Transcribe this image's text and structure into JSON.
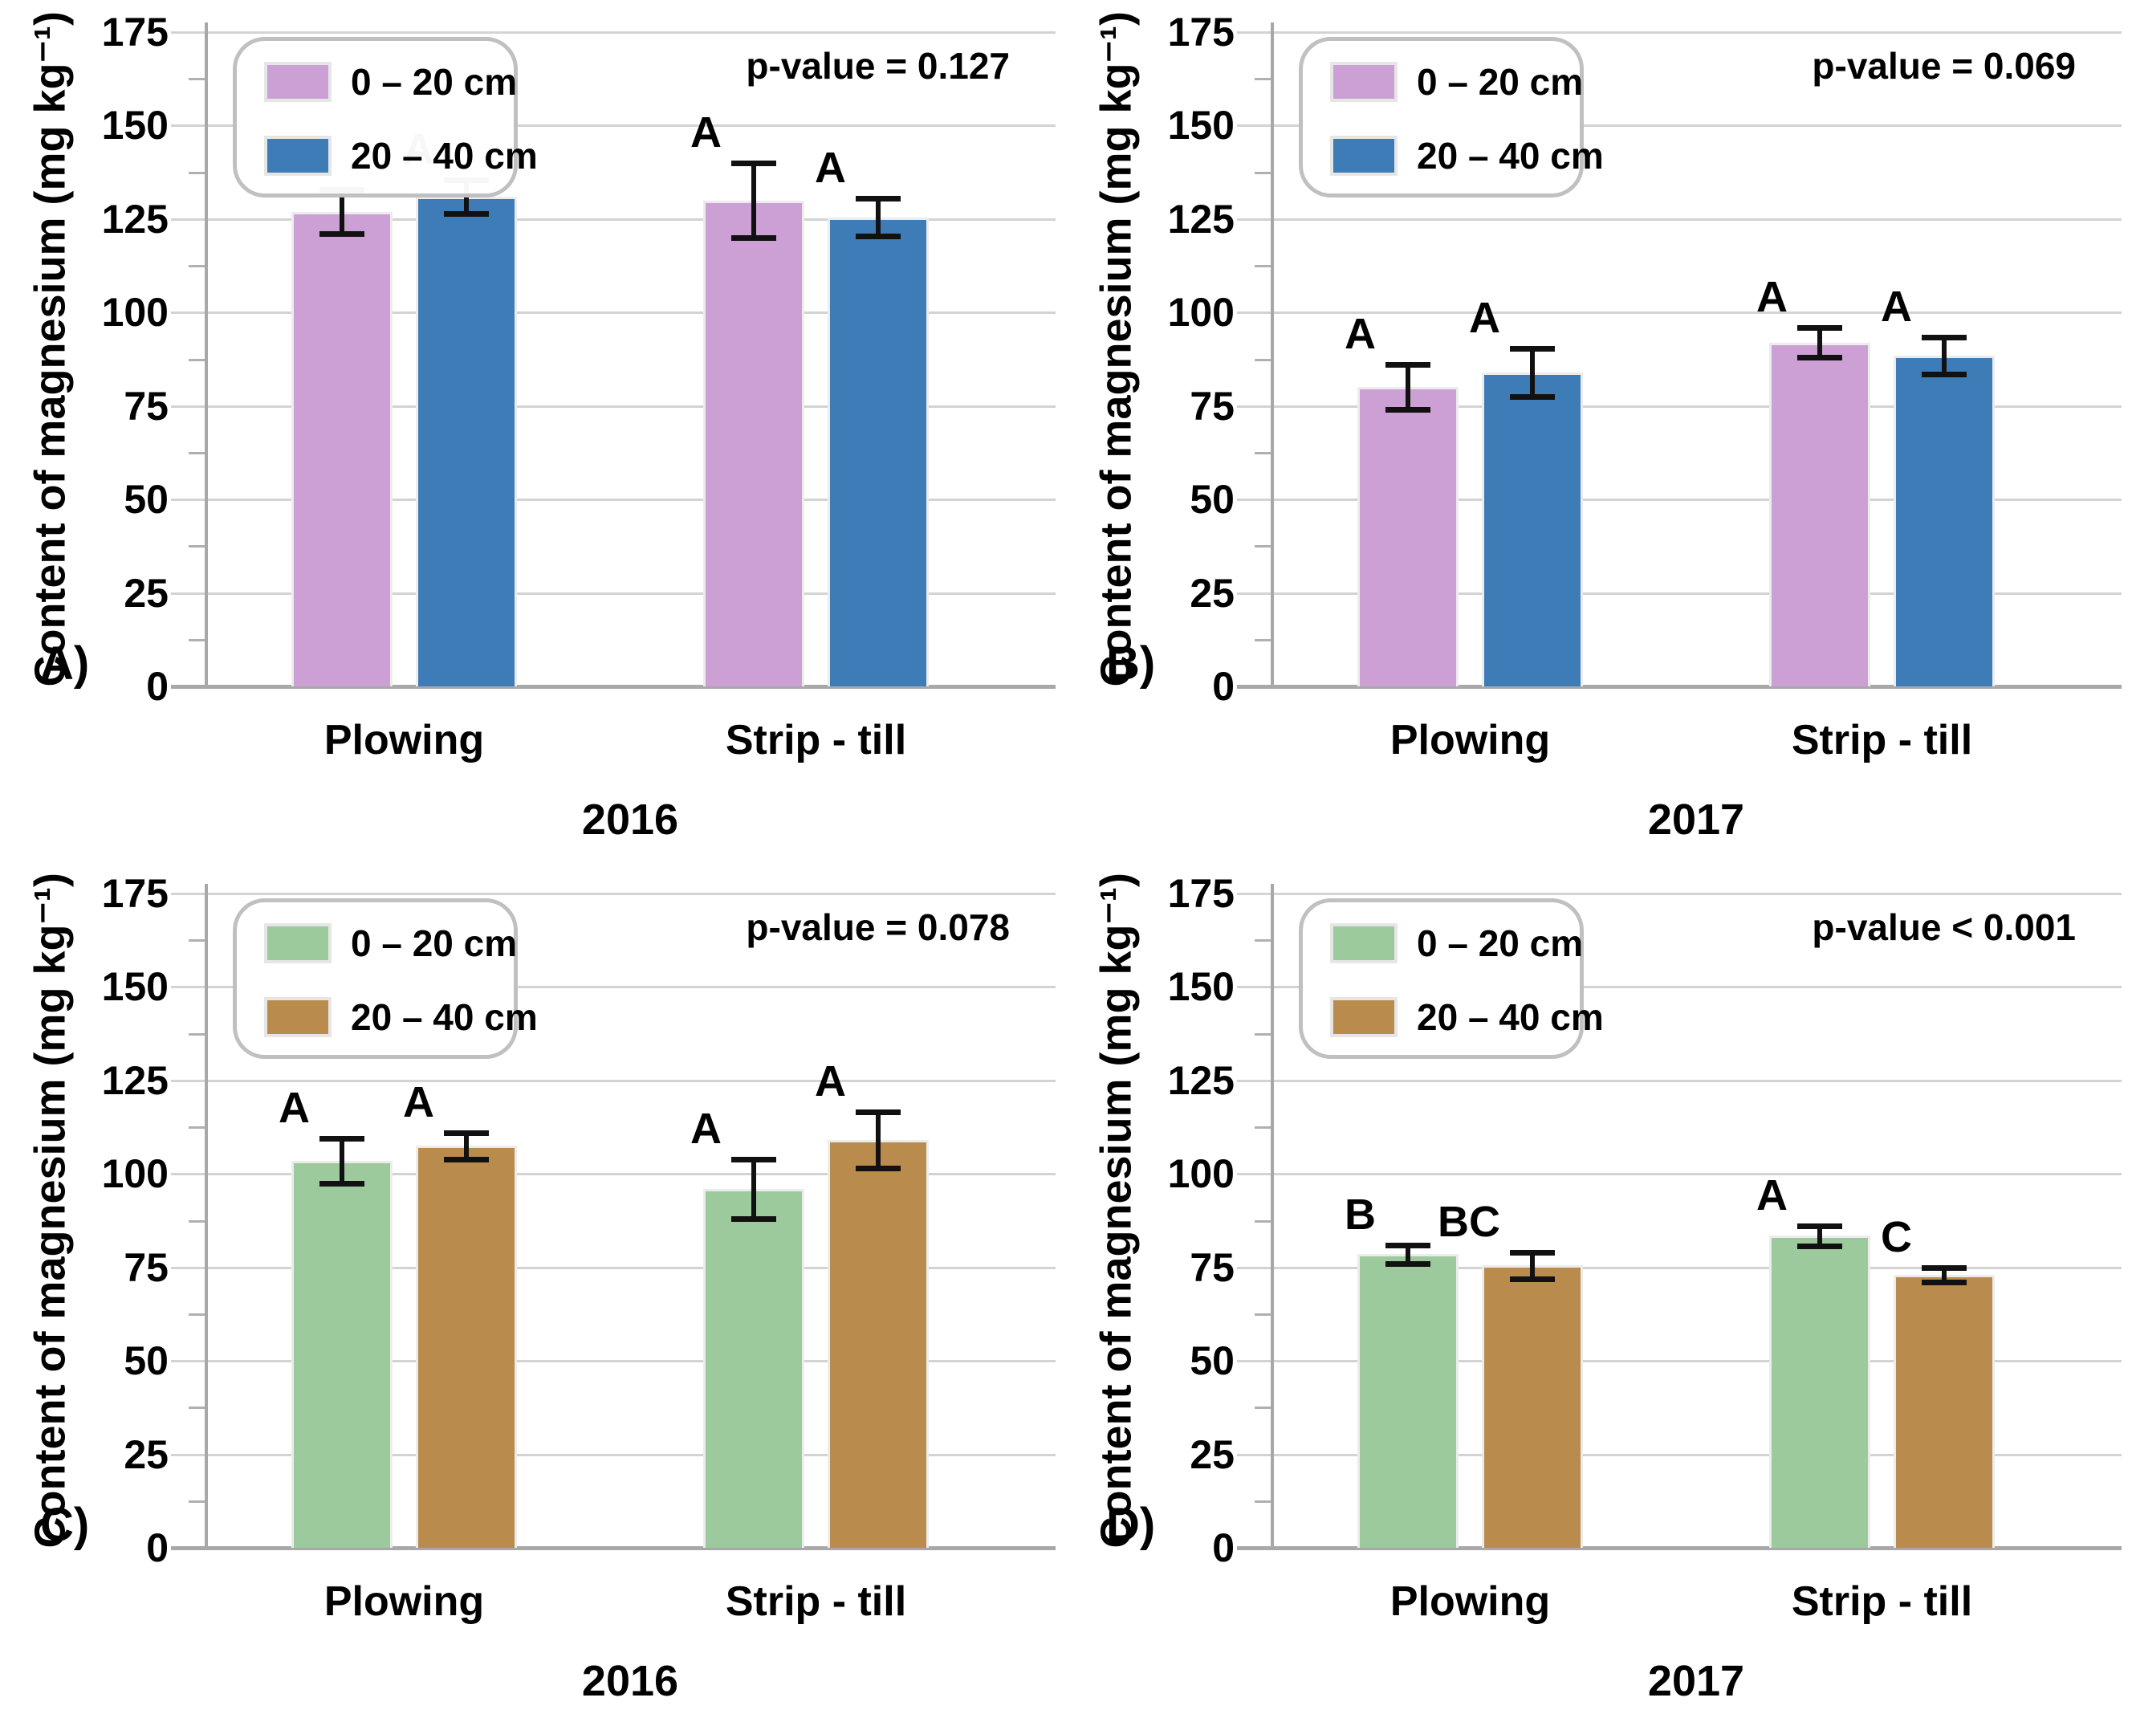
{
  "figure": {
    "background": "#ffffff",
    "y_axis_title": "Content of magnesium (mg kg⁻¹)",
    "grid_color": "#d3d3d3",
    "axis_color": "#a8a8a8",
    "error_bar_color": "#111111"
  },
  "colors": {
    "depth_0_20_pink": "#cda0d5",
    "depth_20_40_blue": "#3e7cb8",
    "depth_0_20_green": "#9cca9c",
    "depth_20_40_brown": "#b98b4c"
  },
  "chart_data": [
    {
      "id": "A",
      "panel_label": "A)",
      "type": "bar",
      "title": "",
      "xlabel": "2016",
      "ylabel": "Content of magnesium (mg kg⁻¹)",
      "p_value_text": "p-value = 0.127",
      "categories": [
        "Plowing",
        "Strip - till"
      ],
      "yticks": [
        0,
        25,
        50,
        75,
        100,
        125,
        150,
        175
      ],
      "ylim": [
        0,
        175
      ],
      "grid": true,
      "legend_position": "top-left",
      "series": [
        {
          "name": "0 – 20 cm",
          "color": "#cda0d5",
          "values": [
            127,
            130
          ],
          "errors": [
            6,
            10
          ],
          "letters": [
            "A",
            "A"
          ]
        },
        {
          "name": "20 – 40 cm",
          "color": "#3e7cb8",
          "values": [
            131,
            125.5
          ],
          "errors": [
            4.5,
            5
          ],
          "letters": [
            "A",
            "A"
          ]
        }
      ]
    },
    {
      "id": "B",
      "panel_label": "B)",
      "type": "bar",
      "title": "",
      "xlabel": "2017",
      "ylabel": "Content of magnesium (mg kg⁻¹)",
      "p_value_text": "p-value = 0.069",
      "categories": [
        "Plowing",
        "Strip - till"
      ],
      "yticks": [
        0,
        25,
        50,
        75,
        100,
        125,
        150,
        175
      ],
      "ylim": [
        0,
        175
      ],
      "grid": true,
      "legend_position": "top-left",
      "series": [
        {
          "name": "0 – 20 cm",
          "color": "#cda0d5",
          "values": [
            80,
            92
          ],
          "errors": [
            6,
            4
          ],
          "letters": [
            "A",
            "A"
          ]
        },
        {
          "name": "20 – 40 cm",
          "color": "#3e7cb8",
          "values": [
            84,
            88.5
          ],
          "errors": [
            6.5,
            5
          ],
          "letters": [
            "A",
            "A"
          ]
        }
      ]
    },
    {
      "id": "C",
      "panel_label": "C)",
      "type": "bar",
      "title": "",
      "xlabel": "2016",
      "ylabel": "Content of magnesium (mg kg⁻¹)",
      "p_value_text": "p-value = 0.078",
      "categories": [
        "Plowing",
        "Strip - till"
      ],
      "yticks": [
        0,
        25,
        50,
        75,
        100,
        125,
        150,
        175
      ],
      "ylim": [
        0,
        175
      ],
      "grid": true,
      "legend_position": "top-left",
      "series": [
        {
          "name": "0 – 20 cm",
          "color": "#9cca9c",
          "values": [
            103.5,
            96
          ],
          "errors": [
            6,
            8
          ],
          "letters": [
            "A",
            "A"
          ]
        },
        {
          "name": "20 – 40 cm",
          "color": "#b98b4c",
          "values": [
            107.5,
            109
          ],
          "errors": [
            3.5,
            7.5
          ],
          "letters": [
            "A",
            "A"
          ]
        }
      ]
    },
    {
      "id": "D",
      "panel_label": "D)",
      "type": "bar",
      "title": "",
      "xlabel": "2017",
      "ylabel": "Content of magnesium (mg kg⁻¹)",
      "p_value_text": "p-value < 0.001",
      "categories": [
        "Plowing",
        "Strip - till"
      ],
      "yticks": [
        0,
        25,
        50,
        75,
        100,
        125,
        150,
        175
      ],
      "ylim": [
        0,
        175
      ],
      "grid": true,
      "legend_position": "top-left",
      "series": [
        {
          "name": "0 – 20 cm",
          "color": "#9cca9c",
          "values": [
            78.5,
            83.5
          ],
          "errors": [
            2.5,
            2.7
          ],
          "letters": [
            "B",
            "A"
          ]
        },
        {
          "name": "20 – 40 cm",
          "color": "#b98b4c",
          "values": [
            75.5,
            73
          ],
          "errors": [
            3.5,
            2
          ],
          "letters": [
            "BC",
            "C"
          ]
        }
      ]
    }
  ]
}
